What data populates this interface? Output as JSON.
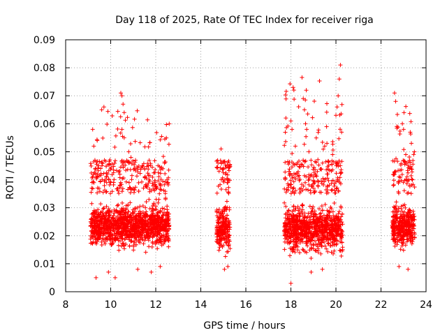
{
  "chart_data": {
    "type": "scatter",
    "title": "Day 118 of 2025, Rate Of TEC Index for receiver riga",
    "xlabel": "GPS time / hours",
    "ylabel": "ROTI / TECUs",
    "xlim": [
      8,
      24
    ],
    "ylim": [
      0,
      0.09
    ],
    "x_ticks": [
      "8",
      "10",
      "12",
      "14",
      "16",
      "18",
      "20",
      "22",
      "24"
    ],
    "y_ticks": [
      "0",
      "0.01",
      "0.02",
      "0.03",
      "0.04",
      "0.05",
      "0.06",
      "0.07",
      "0.08",
      "0.09"
    ],
    "grid": true,
    "marker": "+",
    "color": "#ff0000",
    "series": [
      {
        "name": "ROTI",
        "clusters": [
          {
            "x_range": [
              9.1,
              12.6
            ],
            "y_range": [
              0.005,
              0.072
            ],
            "typical_range": [
              0.012,
              0.035
            ]
          },
          {
            "x_range": [
              14.7,
              15.3
            ],
            "y_range": [
              0.007,
              0.051
            ],
            "typical_range": [
              0.01,
              0.035
            ]
          },
          {
            "x_range": [
              17.7,
              20.3
            ],
            "y_range": [
              0.003,
              0.081
            ],
            "typical_range": [
              0.01,
              0.035
            ]
          },
          {
            "x_range": [
              22.5,
              23.5
            ],
            "y_range": [
              0.008,
              0.071
            ],
            "typical_range": [
              0.012,
              0.035
            ]
          }
        ],
        "points": [
          [
            9.2,
            0.058
          ],
          [
            9.25,
            0.052
          ],
          [
            9.3,
            0.047
          ],
          [
            9.4,
            0.054
          ],
          [
            9.6,
            0.065
          ],
          [
            9.7,
            0.066
          ],
          [
            9.55,
            0.044
          ],
          [
            9.8,
            0.041
          ],
          [
            10.0,
            0.039
          ],
          [
            10.45,
            0.071
          ],
          [
            10.5,
            0.07
          ],
          [
            10.55,
            0.067
          ],
          [
            10.6,
            0.064
          ],
          [
            10.5,
            0.058
          ],
          [
            10.6,
            0.055
          ],
          [
            10.8,
            0.05
          ],
          [
            10.9,
            0.048
          ],
          [
            11.1,
            0.047
          ],
          [
            11.4,
            0.045
          ],
          [
            11.7,
            0.04
          ],
          [
            12.5,
            0.04
          ],
          [
            12.55,
            0.039
          ],
          [
            9.35,
            0.005
          ],
          [
            9.9,
            0.007
          ],
          [
            10.2,
            0.005
          ],
          [
            11.2,
            0.008
          ],
          [
            11.8,
            0.007
          ],
          [
            12.2,
            0.009
          ],
          [
            14.9,
            0.051
          ],
          [
            15.0,
            0.044
          ],
          [
            15.1,
            0.042
          ],
          [
            15.2,
            0.039
          ],
          [
            15.05,
            0.008
          ],
          [
            15.2,
            0.009
          ],
          [
            17.9,
            0.038
          ],
          [
            18.0,
            0.061
          ],
          [
            18.05,
            0.058
          ],
          [
            18.1,
            0.073
          ],
          [
            18.0,
            0.003
          ],
          [
            18.2,
            0.052
          ],
          [
            18.55,
            0.069
          ],
          [
            18.6,
            0.065
          ],
          [
            18.65,
            0.06
          ],
          [
            18.7,
            0.058
          ],
          [
            18.8,
            0.05
          ],
          [
            19.0,
            0.041
          ],
          [
            19.2,
            0.038
          ],
          [
            19.5,
            0.052
          ],
          [
            19.6,
            0.053
          ],
          [
            19.85,
            0.049
          ],
          [
            20.0,
            0.063
          ],
          [
            20.05,
            0.066
          ],
          [
            20.1,
            0.07
          ],
          [
            20.15,
            0.076
          ],
          [
            20.2,
            0.081
          ],
          [
            20.25,
            0.057
          ],
          [
            18.9,
            0.007
          ],
          [
            19.4,
            0.008
          ],
          [
            22.6,
            0.071
          ],
          [
            22.65,
            0.068
          ],
          [
            22.7,
            0.059
          ],
          [
            22.95,
            0.06
          ],
          [
            23.0,
            0.058
          ],
          [
            23.1,
            0.049
          ],
          [
            23.3,
            0.057
          ],
          [
            23.35,
            0.053
          ],
          [
            23.4,
            0.04
          ],
          [
            22.8,
            0.009
          ],
          [
            23.2,
            0.008
          ]
        ]
      }
    ]
  }
}
